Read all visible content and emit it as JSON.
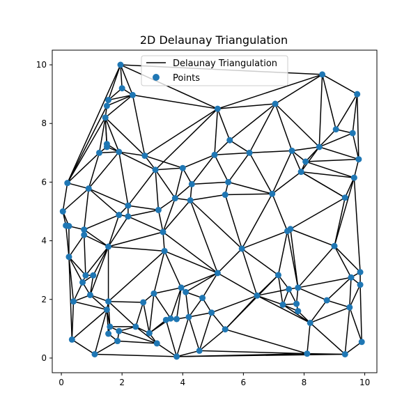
{
  "chart_data": {
    "type": "scatter",
    "title": "2D Delaunay Triangulation",
    "xlabel": "",
    "ylabel": "",
    "xlim": [
      -0.3,
      10.4
    ],
    "ylim": [
      -0.5,
      10.5
    ],
    "xticks": [
      0,
      2,
      4,
      6,
      8,
      10
    ],
    "yticks": [
      0,
      2,
      4,
      6,
      8,
      10
    ],
    "grid": false,
    "legend": {
      "placement": "top-center",
      "entries": [
        {
          "label": "Delaunay Triangulation",
          "kind": "line",
          "color": "#000000"
        },
        {
          "label": "Points",
          "kind": "marker",
          "color": "#1f77b4"
        }
      ]
    },
    "points": [
      [
        1.95,
        10.0
      ],
      [
        8.6,
        9.67
      ],
      [
        2.0,
        9.2
      ],
      [
        2.35,
        8.97
      ],
      [
        1.55,
        8.8
      ],
      [
        1.5,
        8.6
      ],
      [
        9.75,
        9.0
      ],
      [
        7.05,
        8.67
      ],
      [
        5.15,
        8.5
      ],
      [
        1.45,
        8.2
      ],
      [
        9.05,
        7.8
      ],
      [
        9.6,
        7.67
      ],
      [
        5.55,
        7.43
      ],
      [
        1.5,
        7.3
      ],
      [
        1.5,
        7.2
      ],
      [
        1.25,
        7.0
      ],
      [
        1.9,
        7.03
      ],
      [
        8.5,
        7.2
      ],
      [
        7.6,
        7.07
      ],
      [
        6.2,
        7.0
      ],
      [
        2.75,
        6.9
      ],
      [
        5.05,
        6.93
      ],
      [
        9.8,
        6.78
      ],
      [
        8.05,
        6.7
      ],
      [
        3.1,
        6.42
      ],
      [
        4.0,
        6.48
      ],
      [
        7.9,
        6.35
      ],
      [
        0.2,
        5.97
      ],
      [
        5.5,
        6.0
      ],
      [
        9.65,
        6.15
      ],
      [
        0.9,
        5.78
      ],
      [
        4.3,
        5.93
      ],
      [
        5.4,
        5.57
      ],
      [
        6.95,
        5.6
      ],
      [
        9.35,
        5.47
      ],
      [
        3.75,
        5.45
      ],
      [
        4.25,
        5.38
      ],
      [
        2.2,
        5.2
      ],
      [
        3.2,
        5.05
      ],
      [
        0.05,
        5.0
      ],
      [
        1.9,
        4.88
      ],
      [
        2.2,
        4.83
      ],
      [
        0.15,
        4.52
      ],
      [
        0.25,
        4.5
      ],
      [
        0.75,
        4.38
      ],
      [
        3.35,
        4.3
      ],
      [
        7.55,
        4.4
      ],
      [
        7.45,
        4.33
      ],
      [
        0.75,
        4.2
      ],
      [
        1.55,
        3.8
      ],
      [
        9.0,
        3.82
      ],
      [
        5.95,
        3.73
      ],
      [
        3.4,
        3.65
      ],
      [
        0.25,
        3.45
      ],
      [
        5.15,
        2.9
      ],
      [
        9.85,
        2.93
      ],
      [
        0.8,
        2.82
      ],
      [
        1.05,
        2.82
      ],
      [
        7.15,
        2.83
      ],
      [
        9.55,
        2.75
      ],
      [
        0.7,
        2.58
      ],
      [
        3.95,
        2.4
      ],
      [
        7.5,
        2.35
      ],
      [
        7.8,
        2.4
      ],
      [
        9.85,
        2.5
      ],
      [
        4.1,
        2.25
      ],
      [
        3.05,
        2.2
      ],
      [
        0.95,
        2.15
      ],
      [
        6.45,
        2.13
      ],
      [
        4.65,
        2.05
      ],
      [
        8.75,
        1.97
      ],
      [
        1.55,
        1.93
      ],
      [
        0.4,
        1.93
      ],
      [
        2.7,
        1.9
      ],
      [
        7.75,
        1.85
      ],
      [
        7.3,
        1.82
      ],
      [
        1.5,
        1.65
      ],
      [
        9.5,
        1.73
      ],
      [
        7.8,
        1.6
      ],
      [
        4.95,
        1.55
      ],
      [
        3.6,
        1.35
      ],
      [
        3.45,
        1.3
      ],
      [
        4.2,
        1.4
      ],
      [
        3.8,
        1.33
      ],
      [
        8.2,
        1.2
      ],
      [
        1.6,
        1.07
      ],
      [
        2.45,
        1.07
      ],
      [
        5.4,
        0.98
      ],
      [
        1.9,
        0.92
      ],
      [
        2.9,
        0.85
      ],
      [
        1.55,
        0.83
      ],
      [
        0.35,
        0.63
      ],
      [
        1.85,
        0.58
      ],
      [
        9.9,
        0.55
      ],
      [
        3.15,
        0.5
      ],
      [
        4.55,
        0.25
      ],
      [
        8.1,
        0.15
      ],
      [
        9.35,
        0.13
      ],
      [
        1.1,
        0.13
      ],
      [
        3.8,
        0.05
      ]
    ],
    "edges": [
      [
        0,
        2
      ],
      [
        0,
        3
      ],
      [
        0,
        4
      ],
      [
        0,
        1
      ],
      [
        0,
        8
      ],
      [
        2,
        3
      ],
      [
        2,
        4
      ],
      [
        3,
        4
      ],
      [
        4,
        5
      ],
      [
        3,
        5
      ],
      [
        5,
        9
      ],
      [
        3,
        9
      ],
      [
        1,
        6
      ],
      [
        1,
        7
      ],
      [
        1,
        8
      ],
      [
        1,
        10
      ],
      [
        1,
        17
      ],
      [
        6,
        10
      ],
      [
        6,
        11
      ],
      [
        6,
        22
      ],
      [
        10,
        11
      ],
      [
        10,
        17
      ],
      [
        11,
        22
      ],
      [
        11,
        17
      ],
      [
        7,
        8
      ],
      [
        7,
        17
      ],
      [
        7,
        18
      ],
      [
        7,
        19
      ],
      [
        7,
        12
      ],
      [
        8,
        12
      ],
      [
        8,
        21
      ],
      [
        8,
        20
      ],
      [
        8,
        24
      ],
      [
        3,
        8
      ],
      [
        3,
        20
      ],
      [
        9,
        16
      ],
      [
        9,
        20
      ],
      [
        9,
        13
      ],
      [
        9,
        14
      ],
      [
        9,
        15
      ],
      [
        9,
        27
      ],
      [
        5,
        27
      ],
      [
        0,
        27
      ],
      [
        14,
        15
      ],
      [
        13,
        14
      ],
      [
        13,
        16
      ],
      [
        14,
        16
      ],
      [
        15,
        16
      ],
      [
        16,
        20
      ],
      [
        16,
        24
      ],
      [
        15,
        27
      ],
      [
        15,
        30
      ],
      [
        16,
        30
      ],
      [
        16,
        37
      ],
      [
        20,
        24
      ],
      [
        12,
        21
      ],
      [
        12,
        19
      ],
      [
        19,
        21
      ],
      [
        19,
        18
      ],
      [
        18,
        17
      ],
      [
        17,
        22
      ],
      [
        17,
        23
      ],
      [
        17,
        26
      ],
      [
        18,
        23
      ],
      [
        18,
        26
      ],
      [
        18,
        33
      ],
      [
        19,
        28
      ],
      [
        19,
        33
      ],
      [
        21,
        28
      ],
      [
        21,
        25
      ],
      [
        21,
        31
      ],
      [
        20,
        25
      ],
      [
        24,
        25
      ],
      [
        22,
        23
      ],
      [
        22,
        29
      ],
      [
        23,
        29
      ],
      [
        23,
        26
      ],
      [
        26,
        29
      ],
      [
        26,
        33
      ],
      [
        26,
        34
      ],
      [
        29,
        34
      ],
      [
        29,
        55
      ],
      [
        29,
        50
      ],
      [
        34,
        50
      ],
      [
        34,
        46
      ],
      [
        34,
        26
      ],
      [
        25,
        31
      ],
      [
        24,
        35
      ],
      [
        24,
        38
      ],
      [
        24,
        37
      ],
      [
        25,
        35
      ],
      [
        31,
        35
      ],
      [
        31,
        36
      ],
      [
        31,
        28
      ],
      [
        28,
        32
      ],
      [
        28,
        33
      ],
      [
        32,
        36
      ],
      [
        32,
        33
      ],
      [
        32,
        51
      ],
      [
        36,
        51
      ],
      [
        36,
        35
      ],
      [
        36,
        54
      ],
      [
        35,
        38
      ],
      [
        35,
        45
      ],
      [
        36,
        45
      ],
      [
        27,
        30
      ],
      [
        27,
        39
      ],
      [
        30,
        37
      ],
      [
        30,
        40
      ],
      [
        30,
        44
      ],
      [
        30,
        39
      ],
      [
        37,
        38
      ],
      [
        37,
        40
      ],
      [
        37,
        41
      ],
      [
        38,
        41
      ],
      [
        38,
        45
      ],
      [
        41,
        45
      ],
      [
        41,
        49
      ],
      [
        40,
        49
      ],
      [
        40,
        41
      ],
      [
        39,
        42
      ],
      [
        39,
        43
      ],
      [
        42,
        43
      ],
      [
        43,
        44
      ],
      [
        44,
        48
      ],
      [
        44,
        40
      ],
      [
        44,
        49
      ],
      [
        48,
        49
      ],
      [
        42,
        53
      ],
      [
        43,
        53
      ],
      [
        48,
        53
      ],
      [
        48,
        56
      ],
      [
        49,
        56
      ],
      [
        49,
        57
      ],
      [
        49,
        52
      ],
      [
        45,
        52
      ],
      [
        45,
        49
      ],
      [
        52,
        54
      ],
      [
        52,
        61
      ],
      [
        52,
        66
      ],
      [
        52,
        71
      ],
      [
        49,
        71
      ],
      [
        49,
        67
      ],
      [
        45,
        54
      ],
      [
        54,
        51
      ],
      [
        51,
        47
      ],
      [
        51,
        58
      ],
      [
        51,
        68
      ],
      [
        54,
        68
      ],
      [
        54,
        69
      ],
      [
        54,
        61
      ],
      [
        54,
        65
      ],
      [
        47,
        46
      ],
      [
        47,
        33
      ],
      [
        47,
        58
      ],
      [
        46,
        50
      ],
      [
        46,
        63
      ],
      [
        47,
        63
      ],
      [
        50,
        55
      ],
      [
        50,
        59
      ],
      [
        50,
        63
      ],
      [
        33,
        51
      ],
      [
        53,
        56
      ],
      [
        53,
        60
      ],
      [
        53,
        72
      ],
      [
        56,
        57
      ],
      [
        56,
        60
      ],
      [
        57,
        60
      ],
      [
        57,
        67
      ],
      [
        60,
        67
      ],
      [
        60,
        72
      ],
      [
        67,
        72
      ],
      [
        67,
        71
      ],
      [
        67,
        76
      ],
      [
        72,
        76
      ],
      [
        72,
        91
      ],
      [
        53,
        91
      ],
      [
        58,
        62
      ],
      [
        58,
        68
      ],
      [
        58,
        75
      ],
      [
        62,
        63
      ],
      [
        62,
        75
      ],
      [
        62,
        74
      ],
      [
        63,
        74
      ],
      [
        63,
        70
      ],
      [
        63,
        59
      ],
      [
        59,
        70
      ],
      [
        59,
        55
      ],
      [
        59,
        64
      ],
      [
        55,
        64
      ],
      [
        59,
        77
      ],
      [
        64,
        77
      ],
      [
        64,
        93
      ],
      [
        70,
        77
      ],
      [
        70,
        84
      ],
      [
        74,
        78
      ],
      [
        74,
        75
      ],
      [
        78,
        84
      ],
      [
        78,
        75
      ],
      [
        75,
        68
      ],
      [
        68,
        79
      ],
      [
        68,
        87
      ],
      [
        68,
        84
      ],
      [
        75,
        84
      ],
      [
        84,
        77
      ],
      [
        84,
        96
      ],
      [
        84,
        97
      ],
      [
        77,
        93
      ],
      [
        77,
        97
      ],
      [
        93,
        97
      ],
      [
        96,
        97
      ],
      [
        96,
        87
      ],
      [
        96,
        95
      ],
      [
        87,
        95
      ],
      [
        87,
        79
      ],
      [
        79,
        82
      ],
      [
        79,
        69
      ],
      [
        69,
        82
      ],
      [
        69,
        65
      ],
      [
        65,
        82
      ],
      [
        65,
        61
      ],
      [
        61,
        66
      ],
      [
        61,
        83
      ],
      [
        61,
        80
      ],
      [
        66,
        73
      ],
      [
        66,
        80
      ],
      [
        66,
        89
      ],
      [
        73,
        71
      ],
      [
        73,
        86
      ],
      [
        73,
        89
      ],
      [
        71,
        76
      ],
      [
        71,
        86
      ],
      [
        71,
        85
      ],
      [
        76,
        85
      ],
      [
        76,
        90
      ],
      [
        76,
        98
      ],
      [
        76,
        91
      ],
      [
        91,
        98
      ],
      [
        98,
        92
      ],
      [
        98,
        99
      ],
      [
        90,
        92
      ],
      [
        90,
        85
      ],
      [
        85,
        88
      ],
      [
        85,
        86
      ],
      [
        88,
        92
      ],
      [
        88,
        86
      ],
      [
        86,
        89
      ],
      [
        86,
        94
      ],
      [
        88,
        94
      ],
      [
        92,
        94
      ],
      [
        94,
        99
      ],
      [
        94,
        89
      ],
      [
        89,
        81
      ],
      [
        81,
        80
      ],
      [
        81,
        83
      ],
      [
        83,
        80
      ],
      [
        83,
        82
      ],
      [
        82,
        95
      ],
      [
        82,
        99
      ],
      [
        81,
        99
      ],
      [
        95,
        99
      ],
      [
        97,
        99
      ],
      [
        96,
        99
      ],
      [
        89,
        80
      ],
      [
        79,
        95
      ],
      [
        58,
        87
      ],
      [
        62,
        68
      ]
    ]
  }
}
